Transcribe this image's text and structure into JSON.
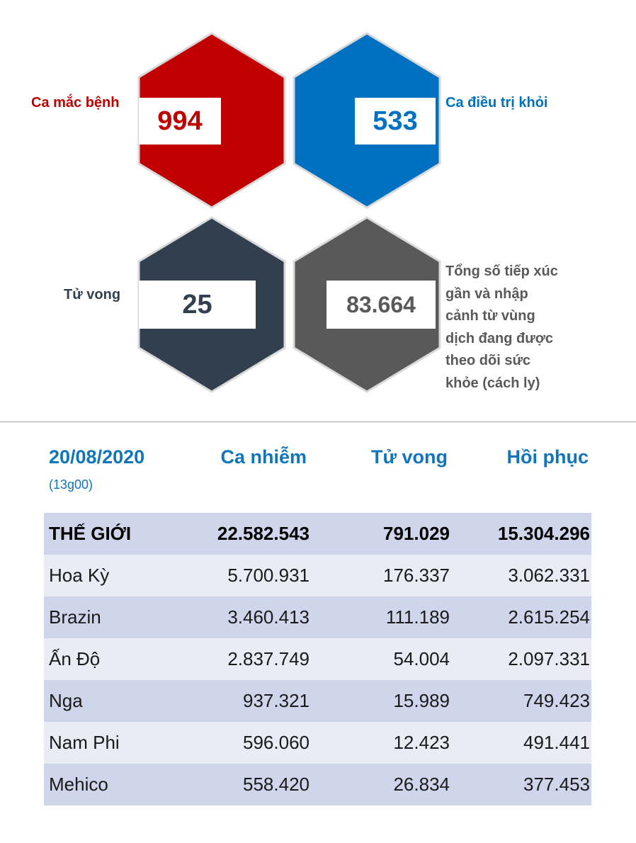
{
  "stats": {
    "cases": {
      "label": "Ca mắc bệnh",
      "value": "994",
      "color": "#c00000"
    },
    "recovered": {
      "label": "Ca điều trị khỏi",
      "value": "533",
      "color": "#0070c0"
    },
    "deaths": {
      "label": "Tử vong",
      "value": "25",
      "color": "#323f4f"
    },
    "monitored": {
      "label_lines": [
        "Tổng số tiếp xúc",
        "gần và nhập",
        "cảnh từ vùng",
        "dịch đang được",
        "theo dõi sức",
        "khỏe (cách ly)"
      ],
      "value": "83.664",
      "color": "#595959"
    }
  },
  "table": {
    "date": "20/08/2020",
    "time": "(13g00)",
    "columns": [
      "Ca nhiễm",
      "Tử vong",
      "Hồi phục"
    ],
    "rows": [
      {
        "name": "THẾ GIỚI",
        "cases": "22.582.543",
        "deaths": "791.029",
        "recovered": "15.304.296"
      },
      {
        "name": "Hoa Kỳ",
        "cases": "5.700.931",
        "deaths": "176.337",
        "recovered": "3.062.331"
      },
      {
        "name": "Brazin",
        "cases": "3.460.413",
        "deaths": "111.189",
        "recovered": "2.615.254"
      },
      {
        "name": "Ấn Độ",
        "cases": "2.837.749",
        "deaths": "54.004",
        "recovered": "2.097.331"
      },
      {
        "name": "Nga",
        "cases": "937.321",
        "deaths": "15.989",
        "recovered": "749.423"
      },
      {
        "name": "Nam Phi",
        "cases": "596.060",
        "deaths": "12.423",
        "recovered": "491.441"
      },
      {
        "name": "Mehico",
        "cases": "558.420",
        "deaths": "26.834",
        "recovered": "377.453"
      }
    ]
  }
}
